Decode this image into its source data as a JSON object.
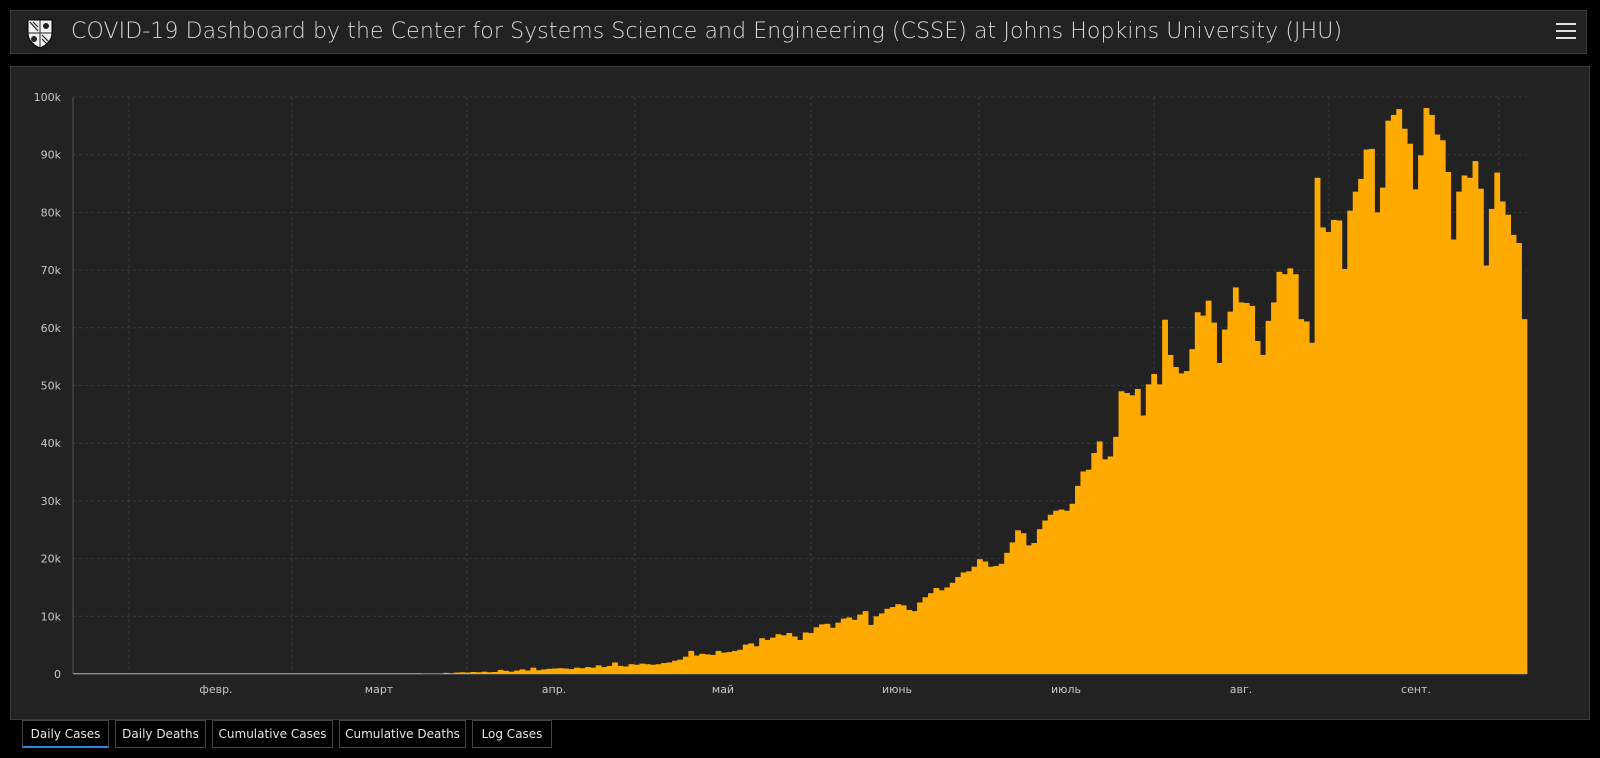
{
  "header": {
    "title": "COVID-19 Dashboard by the Center for Systems Science and Engineering (CSSE) at Johns Hopkins University (JHU)",
    "logo_icon": "jhu-shield-logo",
    "menu_icon": "hamburger-menu-icon"
  },
  "colors": {
    "bar": "#FFAA00",
    "background": "#222222",
    "grid": "#3a3a3a",
    "text": "#c8c8c8",
    "tab_active": "#2e86de"
  },
  "tabs": [
    {
      "label": "Daily Cases",
      "active": true
    },
    {
      "label": "Daily Deaths",
      "active": false
    },
    {
      "label": "Cumulative Cases",
      "active": false
    },
    {
      "label": "Cumulative Deaths",
      "active": false
    },
    {
      "label": "Log Cases",
      "active": false
    }
  ],
  "chart_data": {
    "type": "bar",
    "title": "",
    "xlabel": "",
    "ylabel": "",
    "ylim": [
      0,
      100000
    ],
    "y_ticks": [
      "0",
      "10k",
      "20k",
      "30k",
      "40k",
      "50k",
      "60k",
      "70k",
      "80k",
      "90k",
      "100k"
    ],
    "x_ticks": [
      "февр.",
      "март",
      "апр.",
      "май",
      "июнь",
      "июль",
      "авг.",
      "сент."
    ],
    "grid": true,
    "series": [
      {
        "values": [
          0,
          0,
          0,
          0,
          0,
          0,
          0,
          0,
          0,
          0,
          0,
          0,
          0,
          0,
          0,
          0,
          0,
          0,
          0,
          0,
          0,
          0,
          0,
          0,
          0,
          0,
          0,
          0,
          0,
          0,
          0,
          0,
          0,
          0,
          0,
          0,
          0,
          0,
          0,
          0,
          0,
          0,
          0,
          0,
          0,
          0,
          0,
          0,
          0,
          0,
          0,
          0,
          0,
          0,
          0,
          0,
          0,
          0,
          0,
          0,
          0,
          0,
          0,
          0,
          50,
          60,
          80,
          100,
          200,
          150,
          250,
          300,
          250,
          350,
          300,
          400,
          300,
          350,
          700,
          550,
          400,
          600,
          800,
          600,
          1100,
          650,
          800,
          900,
          950,
          1000,
          950,
          850,
          1100,
          1000,
          1200,
          1100,
          1500,
          1200,
          1400,
          2000,
          1400,
          1300,
          1700,
          1600,
          1800,
          1700,
          1600,
          1700,
          1900,
          2000,
          2300,
          2500,
          3000,
          4000,
          3200,
          3500,
          3400,
          3300,
          4000,
          3700,
          3800,
          4000,
          4200,
          5100,
          5300,
          4800,
          6200,
          5900,
          6300,
          6900,
          6700,
          7100,
          6500,
          5900,
          7200,
          7100,
          8100,
          8600,
          8700,
          8000,
          8900,
          9600,
          9800,
          9400,
          10300,
          10900,
          8500,
          10000,
          10500,
          11300,
          11600,
          12100,
          11900,
          11100,
          10900,
          12400,
          13300,
          14000,
          14900,
          14500,
          15000,
          15800,
          16800,
          17600,
          17800,
          18600,
          19900,
          19500,
          18600,
          18700,
          19100,
          21000,
          22800,
          24900,
          24400,
          22300,
          22700,
          25100,
          26600,
          27600,
          28300,
          28500,
          28300,
          29500,
          32600,
          35100,
          35400,
          38300,
          40300,
          37200,
          37700,
          41100,
          49000,
          48700,
          48300,
          49400,
          44800,
          50200,
          52000,
          50200,
          61400,
          55300,
          53200,
          52100,
          52500,
          56300,
          62700,
          62100,
          64700,
          60900,
          53900,
          59700,
          62800,
          67000,
          64400,
          64300,
          63800,
          57700,
          55300,
          61200,
          64400,
          69700,
          69300,
          70300,
          69300,
          61500,
          61100,
          57400,
          86000,
          77400,
          76600,
          78700,
          78600,
          70200,
          80300,
          83600,
          85800,
          90900,
          91000,
          80000,
          84300,
          95900,
          96900,
          97900,
          94500,
          91900,
          84000,
          89900,
          98100,
          96900,
          93500,
          92500,
          87000,
          75300,
          83600,
          86400,
          86000,
          88900,
          84100,
          70800,
          80600,
          86900,
          81900,
          79600,
          76100,
          74700,
          61500
        ]
      }
    ]
  }
}
